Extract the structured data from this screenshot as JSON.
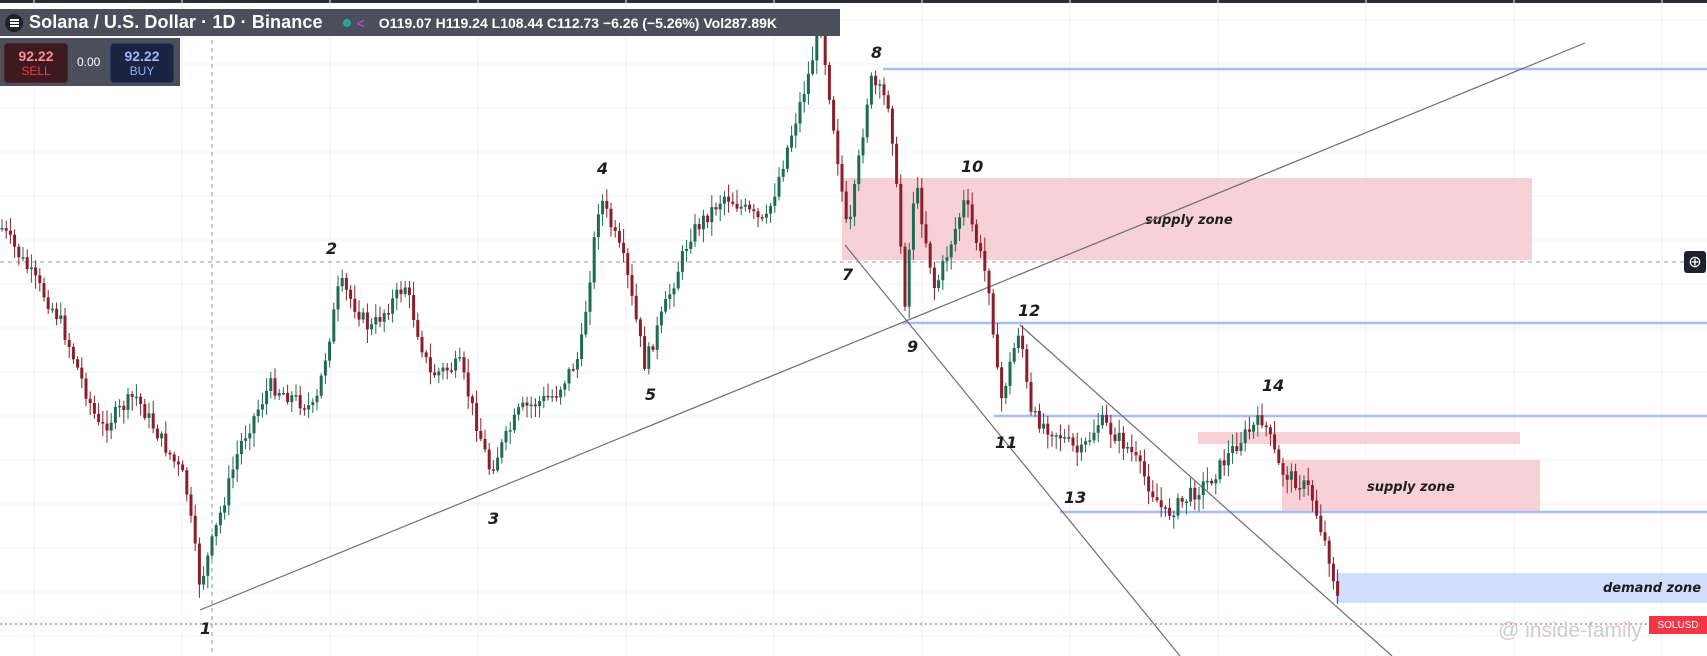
{
  "header": {
    "symbol_title": "Solana / U.S. Dollar · 1D · Binance",
    "ohlc_text": "O119.07 H119.24 L108.44 C112.73 −6.26 (−5.26%) Vol287.89K"
  },
  "trade": {
    "sell_price": "92.22",
    "sell_label": "SELL",
    "spread": "0.00",
    "buy_price": "92.22",
    "buy_label": "BUY"
  },
  "price_tag": "SOLUSD",
  "watermark": "@ inside-family",
  "chart_data": {
    "type": "candlestick",
    "series": "SOL/USD daily",
    "colors": {
      "up": "#1e6b52",
      "down": "#8a1f2b",
      "supply": "#f7c9cf",
      "demand": "#c9d8fb",
      "level": "#a9bdf5"
    },
    "wave_labels": [
      "1",
      "2",
      "3",
      "4",
      "5",
      "7",
      "8",
      "9",
      "10",
      "11",
      "12",
      "13",
      "14"
    ],
    "zones": [
      {
        "label": "supply zone"
      },
      {
        "label": "supply zone"
      },
      {
        "label": "demand zone"
      }
    ]
  }
}
